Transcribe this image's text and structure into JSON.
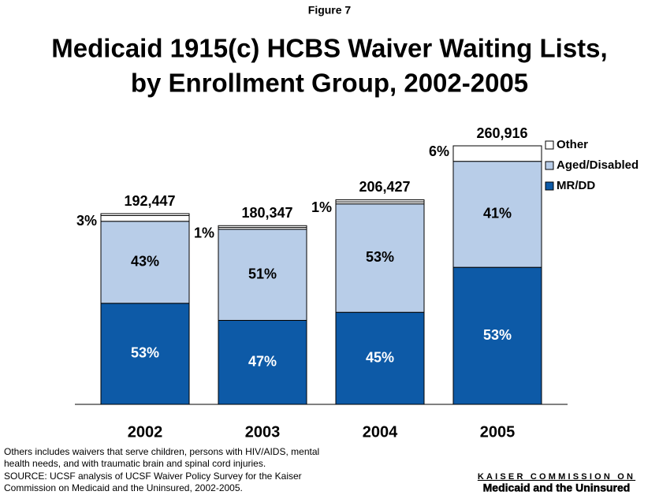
{
  "figure_label": "Figure 7",
  "chart_data": {
    "type": "stacked_bar",
    "title": [
      "Medicaid 1915(c) HCBS Waiver Waiting Lists,",
      "by Enrollment Group, 2002-2005"
    ],
    "categories": [
      "2002",
      "2003",
      "2004",
      "2005"
    ],
    "series": [
      {
        "name": "MR/DD",
        "color": "#0d5aa7",
        "values": [
          53,
          47,
          45,
          53
        ],
        "value_labels": [
          "53%",
          "47%",
          "45%",
          "53%"
        ]
      },
      {
        "name": "Aged/Disabled",
        "color": "#b8cde8",
        "values": [
          43,
          51,
          53,
          41
        ],
        "value_labels": [
          "43%",
          "51%",
          "53%",
          "41%"
        ]
      },
      {
        "name": "Other",
        "color": "#ffffff",
        "values": [
          3,
          1,
          1,
          6
        ],
        "value_labels": [
          "3%",
          "1%",
          "1%",
          "6%"
        ]
      }
    ],
    "totals": {
      "values": [
        192447,
        180347,
        206427,
        260916
      ],
      "value_labels": [
        "192,447",
        "180,347",
        "206,427",
        "260,916"
      ]
    },
    "legend": "upper right"
  },
  "notes": [
    "Others includes waivers that serve children, persons with HIV/AIDS, mental",
    "health needs, and with traumatic brain and spinal cord injuries.",
    "SOURCE:  UCSF analysis of UCSF Waiver Policy Survey for the Kaiser",
    "Commission on Medicaid and the Uninsured, 2002-2005."
  ],
  "logo": [
    "KAISER COMMISSION ON",
    "Medicaid and the Uninsured"
  ]
}
